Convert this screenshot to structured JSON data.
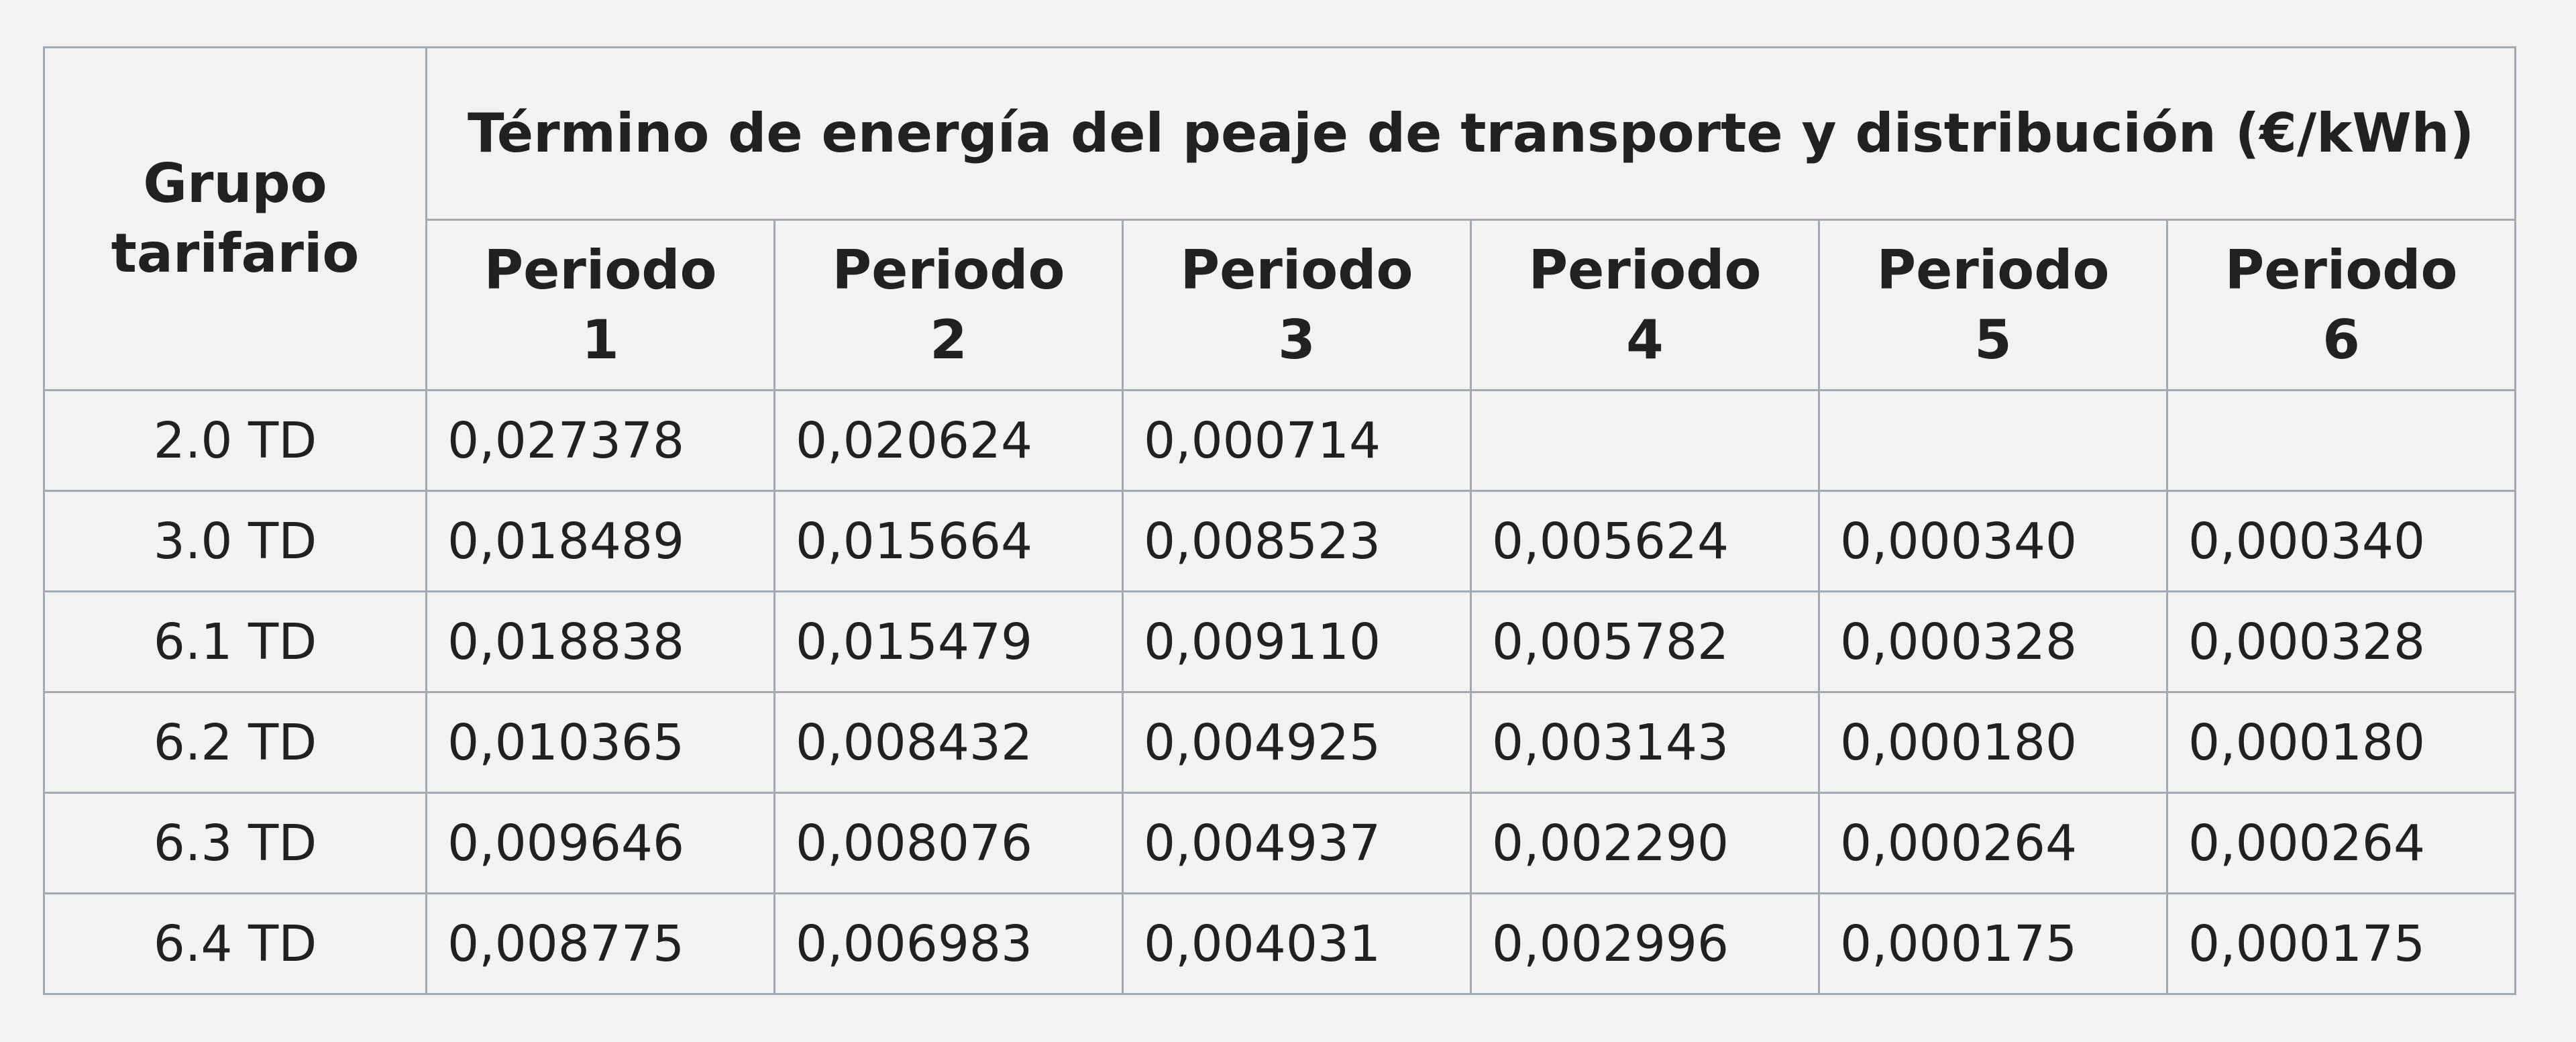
{
  "table": {
    "group_header": "Grupo tarifario",
    "title": "Término de energía del peaje de transporte y distribución (€/kWh)",
    "periods": [
      "Periodo 1",
      "Periodo 2",
      "Periodo 3",
      "Periodo 4",
      "Periodo 5",
      "Periodo 6"
    ],
    "rows": [
      [
        "2.0 TD",
        "0,027378",
        "0,020624",
        "0,000714"
      ],
      [
        "3.0 TD",
        "0,018489",
        "0,015664",
        "0,008523",
        "0,005624",
        "0,000340",
        "0,000340"
      ],
      [
        "6.1 TD",
        "0,018838",
        "0,015479",
        "0,009110",
        "0,005782",
        "0,000328",
        "0,000328"
      ],
      [
        "6.2 TD",
        "0,010365",
        "0,008432",
        "0,004925",
        "0,003143",
        "0,000180",
        "0,000180"
      ],
      [
        "6.3 TD",
        "0,009646",
        "0,008076",
        "0,004937",
        "0,002290",
        "0,000264",
        "0,000264"
      ],
      [
        "6.4 TD",
        "0,008775",
        "0,006983",
        "0,004031",
        "0,002996",
        "0,000175",
        "0,000175"
      ]
    ]
  }
}
